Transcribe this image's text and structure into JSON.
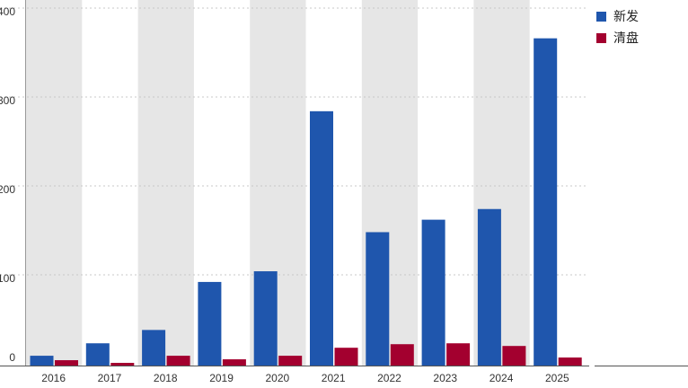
{
  "chart_data": {
    "type": "bar",
    "categories": [
      "2016",
      "2017",
      "2018",
      "2019",
      "2020",
      "2021",
      "2022",
      "2023",
      "2024",
      "2025"
    ],
    "series": [
      {
        "name": "新发",
        "color": "#1f56ad",
        "values": [
          9,
          23,
          38,
          92,
          104,
          284,
          148,
          162,
          174,
          366
        ]
      },
      {
        "name": "清盘",
        "color": "#a3002f",
        "values": [
          4,
          1,
          9,
          5,
          9,
          18,
          22,
          23,
          20,
          7
        ]
      }
    ],
    "yticks": [
      "0",
      "100",
      "200",
      "300",
      "400"
    ],
    "ylim": [
      0,
      400
    ],
    "grid": true,
    "alternating_column_shading": true,
    "legend_position": "right"
  }
}
